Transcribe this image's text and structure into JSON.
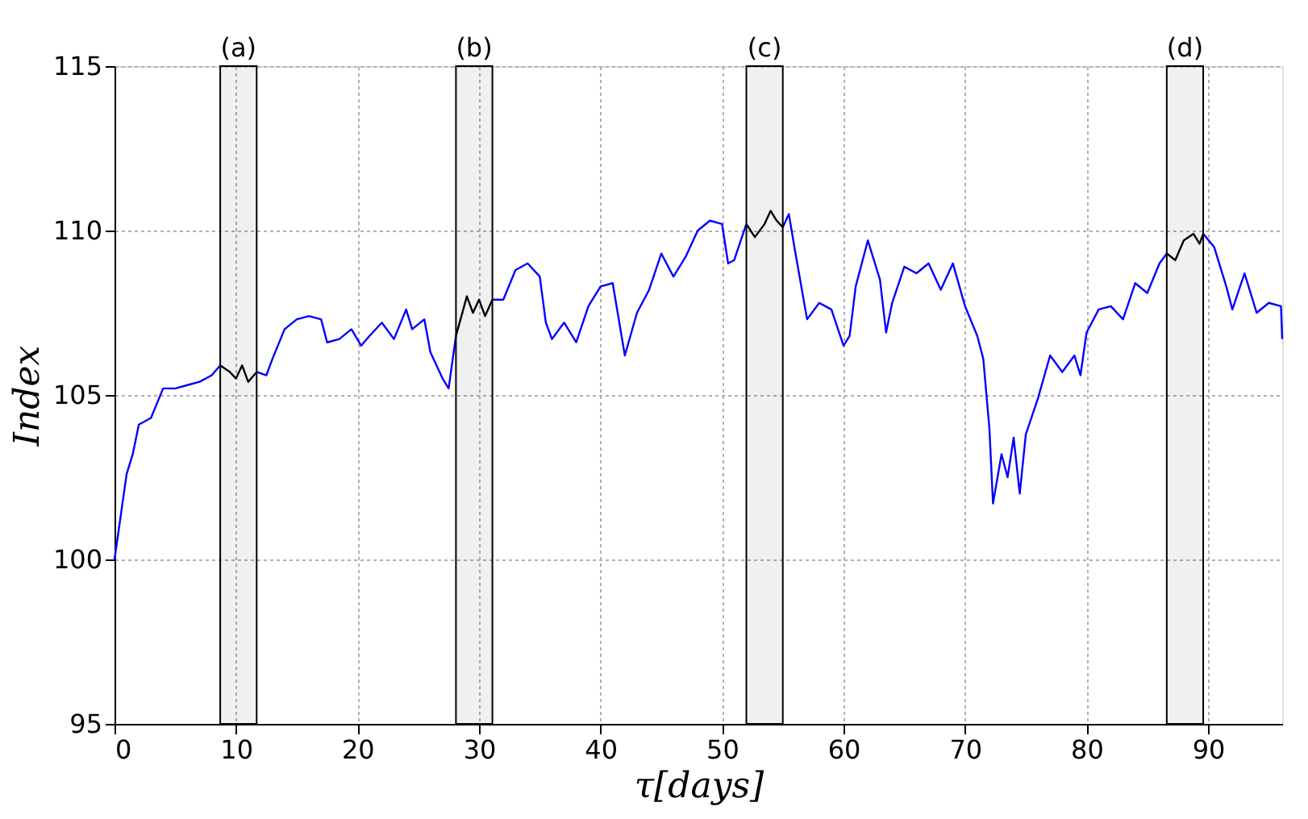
{
  "chart_data": {
    "type": "line",
    "xlabel": "τ[days]",
    "ylabel": "Index",
    "xlim": [
      0,
      96.1
    ],
    "ylim": [
      95,
      115
    ],
    "xticks": [
      0,
      10,
      20,
      30,
      40,
      50,
      60,
      70,
      80,
      90
    ],
    "yticks": [
      95,
      100,
      105,
      110,
      115
    ],
    "grid": true,
    "line_style": "solid",
    "marker": "none",
    "series": [
      {
        "color": "#0000ff",
        "x": [
          0,
          0.5,
          1,
          1.5,
          2,
          3,
          4,
          5,
          6,
          7,
          8,
          8.7
        ],
        "values": [
          100,
          101.3,
          102.6,
          103.2,
          104.1,
          104.3,
          105.2,
          105.2,
          105.3,
          105.4,
          105.6,
          105.9
        ]
      },
      {
        "color": "#000000",
        "x": [
          8.7,
          9.5,
          10,
          10.5,
          11,
          11.7
        ],
        "values": [
          105.9,
          105.7,
          105.5,
          105.9,
          105.4,
          105.7
        ]
      },
      {
        "color": "#0000ff",
        "x": [
          11.7,
          12.5,
          13,
          14,
          15,
          16,
          17,
          17.5,
          18.5,
          19.5,
          20.3,
          21,
          22,
          23,
          24,
          24.5,
          25.5,
          26,
          27,
          27.5,
          28.1
        ],
        "values": [
          105.7,
          105.6,
          106.1,
          107,
          107.3,
          107.4,
          107.3,
          106.6,
          106.7,
          107,
          106.5,
          106.8,
          107.2,
          106.7,
          107.6,
          107,
          107.3,
          106.3,
          105.5,
          105.2,
          106.8
        ]
      },
      {
        "color": "#000000",
        "x": [
          28.1,
          29,
          29.5,
          30,
          30.5,
          31.1
        ],
        "values": [
          106.8,
          108,
          107.5,
          107.9,
          107.4,
          107.9
        ]
      },
      {
        "color": "#0000ff",
        "x": [
          31.1,
          32,
          33,
          34,
          35,
          35.5,
          36,
          37,
          38,
          39,
          40,
          41,
          42,
          43,
          44,
          45,
          46,
          47,
          48,
          49,
          50,
          50.5,
          51,
          52
        ],
        "values": [
          107.9,
          107.9,
          108.8,
          109,
          108.6,
          107.2,
          106.7,
          107.2,
          106.6,
          107.7,
          108.3,
          108.4,
          106.2,
          107.5,
          108.2,
          109.3,
          108.6,
          109.2,
          110,
          110.3,
          110.2,
          109,
          109.1,
          110.2
        ]
      },
      {
        "color": "#000000",
        "x": [
          52,
          52.7,
          53.5,
          54,
          54.5,
          55
        ],
        "values": [
          110.2,
          109.8,
          110.2,
          110.6,
          110.3,
          110.1
        ]
      },
      {
        "color": "#0000ff",
        "x": [
          55,
          55.5,
          56,
          57,
          58,
          59,
          60,
          60.5,
          61,
          62,
          63,
          63.5,
          64,
          65,
          66,
          67,
          68,
          69,
          70,
          71,
          71.5,
          72,
          72.3,
          73,
          73.5,
          74,
          74.5,
          75,
          76,
          77,
          78,
          79,
          79.5,
          80,
          81,
          82,
          83,
          84,
          85,
          86,
          86.6
        ],
        "values": [
          110.1,
          110.5,
          109.4,
          107.3,
          107.8,
          107.6,
          106.5,
          106.8,
          108.3,
          109.7,
          108.5,
          106.9,
          107.8,
          108.9,
          108.7,
          109,
          108.2,
          109,
          107.7,
          106.8,
          106.1,
          104,
          101.7,
          103.2,
          102.5,
          103.7,
          102,
          103.8,
          104.9,
          106.2,
          105.7,
          106.2,
          105.6,
          106.9,
          107.6,
          107.7,
          107.3,
          108.4,
          108.1,
          109,
          109.3
        ]
      },
      {
        "color": "#000000",
        "x": [
          86.6,
          87.3,
          88,
          88.8,
          89.3,
          89.6
        ],
        "values": [
          109.3,
          109.1,
          109.7,
          109.9,
          109.6,
          109.9
        ]
      },
      {
        "color": "#0000ff",
        "x": [
          89.6,
          90.5,
          91.5,
          92,
          93,
          94,
          95,
          96,
          96.1
        ],
        "values": [
          109.9,
          109.5,
          108.3,
          107.6,
          108.7,
          107.5,
          107.8,
          107.7,
          106.7
        ]
      }
    ],
    "bands": [
      {
        "axis": "x",
        "from": 8.7,
        "to": 11.7,
        "label": "(a)",
        "color": "#000000"
      },
      {
        "axis": "x",
        "from": 28.1,
        "to": 31.1,
        "label": "(b)",
        "color": "#000000"
      },
      {
        "axis": "x",
        "from": 52,
        "to": 55,
        "label": "(c)",
        "color": "#000000"
      },
      {
        "axis": "x",
        "from": 86.6,
        "to": 89.6,
        "label": "(d)",
        "color": "#000000"
      }
    ]
  }
}
